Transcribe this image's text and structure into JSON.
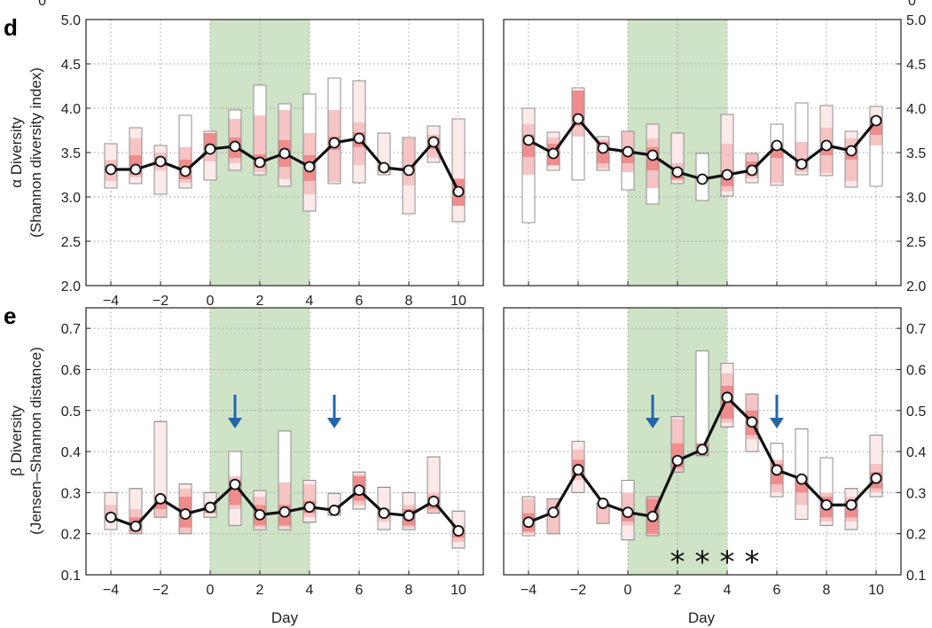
{
  "figure": {
    "panel_d": "d",
    "panel_e": "e",
    "alpha_ylabel_top": "α Diversity",
    "alpha_ylabel_bottom": "(Shannon diversity index)",
    "beta_ylabel_top": "β Diversity",
    "beta_ylabel_bottom": "(Jensen–Shannon distance)",
    "xlabel": "Day",
    "top_cut_tick": "0"
  },
  "colors": {
    "shade": "#cfe3c6",
    "box_inner": "#f08c8c",
    "box_mid": "#f6c4c4",
    "box_outer": "#fceaea",
    "box_white": "#ffffff",
    "box_edge": "#8f8f8f",
    "line": "#111111",
    "arrow": "#2166ac",
    "grid": "#9a9a9a"
  },
  "chart_data": [
    {
      "id": "d-left",
      "type": "line",
      "x": [
        -4,
        -3,
        -2,
        -1,
        0,
        1,
        2,
        3,
        4,
        5,
        6,
        7,
        8,
        9,
        10
      ],
      "median": [
        3.31,
        3.31,
        3.4,
        3.29,
        3.54,
        3.57,
        3.39,
        3.49,
        3.34,
        3.61,
        3.66,
        3.33,
        3.3,
        3.62,
        3.06
      ],
      "box_outer": [
        [
          3.1,
          3.6
        ],
        [
          3.15,
          3.78
        ],
        [
          3.03,
          3.58
        ],
        [
          3.1,
          3.92
        ],
        [
          3.19,
          3.74
        ],
        [
          3.3,
          3.98
        ],
        [
          3.25,
          4.26
        ],
        [
          3.12,
          4.05
        ],
        [
          2.84,
          4.16
        ],
        [
          3.15,
          4.34
        ],
        [
          3.16,
          4.31
        ],
        [
          3.25,
          3.72
        ],
        [
          2.81,
          3.67
        ],
        [
          3.39,
          3.8
        ],
        [
          2.72,
          3.88
        ]
      ],
      "box_mid": [
        [
          3.18,
          3.42
        ],
        [
          3.22,
          3.66
        ],
        [
          3.3,
          3.5
        ],
        [
          3.16,
          3.56
        ],
        [
          3.4,
          3.72
        ],
        [
          3.38,
          3.88
        ],
        [
          3.28,
          3.92
        ],
        [
          3.2,
          3.98
        ],
        [
          3.03,
          3.72
        ],
        [
          3.17,
          3.98
        ],
        [
          3.36,
          3.84
        ],
        [
          3.27,
          3.36
        ],
        [
          3.13,
          3.66
        ],
        [
          3.44,
          3.7
        ],
        [
          2.9,
          3.21
        ]
      ],
      "box_inner": [
        [
          3.28,
          3.36
        ],
        [
          3.25,
          3.47
        ],
        [
          3.35,
          3.45
        ],
        [
          3.2,
          3.42
        ],
        [
          3.52,
          3.72
        ],
        [
          3.44,
          3.67
        ],
        [
          3.33,
          3.48
        ],
        [
          3.34,
          3.64
        ],
        [
          3.18,
          3.47
        ],
        [
          3.53,
          3.68
        ],
        [
          3.56,
          3.73
        ],
        [
          3.3,
          3.35
        ],
        [
          3.28,
          3.35
        ],
        [
          3.54,
          3.67
        ],
        [
          2.9,
          3.2
        ]
      ],
      "box_white": [
        null,
        null,
        null,
        [
          3.56,
          3.92
        ],
        null,
        [
          3.86,
          3.98
        ],
        [
          3.92,
          4.26
        ],
        [
          3.98,
          4.05
        ],
        [
          3.72,
          4.16
        ],
        [
          3.98,
          4.34
        ],
        null,
        null,
        null,
        null,
        null
      ],
      "ylim": [
        2.0,
        5.0
      ],
      "yticks": [
        "2.0",
        "2.5",
        "3.0",
        "3.5",
        "4.0",
        "4.5",
        "5.0"
      ],
      "xticks": [
        "−4",
        "−2",
        "0",
        "2",
        "4",
        "6",
        "8",
        "10"
      ],
      "shaded": [
        0,
        4
      ],
      "grid": true
    },
    {
      "id": "d-right",
      "type": "line",
      "x": [
        -4,
        -3,
        -2,
        -1,
        0,
        1,
        2,
        3,
        4,
        5,
        6,
        7,
        8,
        9,
        10
      ],
      "median": [
        3.64,
        3.49,
        3.88,
        3.55,
        3.51,
        3.47,
        3.28,
        3.2,
        3.25,
        3.3,
        3.58,
        3.37,
        3.58,
        3.52,
        3.86
      ],
      "box_outer": [
        [
          2.71,
          4.0
        ],
        [
          3.3,
          3.73
        ],
        [
          3.19,
          4.23
        ],
        [
          3.3,
          3.68
        ],
        [
          3.08,
          3.74
        ],
        [
          2.92,
          3.82
        ],
        [
          3.15,
          3.72
        ],
        [
          2.96,
          3.49
        ],
        [
          3.01,
          3.93
        ],
        [
          3.16,
          3.49
        ],
        [
          3.13,
          3.82
        ],
        [
          3.25,
          4.06
        ],
        [
          3.24,
          4.03
        ],
        [
          3.11,
          3.74
        ],
        [
          3.12,
          4.02
        ]
      ],
      "box_mid": [
        [
          3.25,
          3.82
        ],
        [
          3.35,
          3.67
        ],
        [
          3.68,
          4.18
        ],
        [
          3.32,
          3.65
        ],
        [
          3.28,
          3.74
        ],
        [
          3.1,
          3.66
        ],
        [
          3.18,
          3.38
        ],
        [
          null,
          null
        ],
        [
          3.06,
          3.6
        ],
        [
          3.21,
          3.49
        ],
        [
          3.16,
          3.58
        ],
        [
          3.28,
          3.62
        ],
        [
          3.27,
          3.78
        ],
        [
          3.18,
          3.66
        ],
        [
          3.58,
          3.91
        ]
      ],
      "box_inner": [
        [
          3.45,
          3.7
        ],
        [
          3.36,
          3.6
        ],
        [
          3.8,
          4.2
        ],
        [
          3.38,
          3.62
        ],
        [
          3.38,
          3.55
        ],
        [
          3.3,
          3.56
        ],
        [
          3.2,
          3.32
        ],
        [
          null,
          null
        ],
        [
          3.12,
          3.3
        ],
        [
          3.24,
          3.4
        ],
        [
          3.44,
          3.58
        ],
        [
          3.32,
          3.4
        ],
        [
          3.47,
          3.6
        ],
        [
          3.42,
          3.57
        ],
        [
          3.7,
          3.9
        ]
      ],
      "box_white": [
        [
          2.71,
          3.25
        ],
        null,
        [
          3.19,
          3.68
        ],
        null,
        [
          3.08,
          3.28
        ],
        [
          2.92,
          3.1
        ],
        null,
        [
          2.96,
          3.49
        ],
        null,
        null,
        [
          3.58,
          3.82
        ],
        [
          3.62,
          4.06
        ],
        null,
        null,
        [
          3.12,
          3.58
        ]
      ],
      "ylim": [
        2.0,
        5.0
      ],
      "yticks": [
        "2.0",
        "2.5",
        "3.0",
        "3.5",
        "4.0",
        "4.5",
        "5.0"
      ],
      "xticks": [],
      "shaded": [
        0,
        4
      ],
      "grid": true
    },
    {
      "id": "e-left",
      "type": "line",
      "x": [
        -4,
        -3,
        -2,
        -1,
        0,
        1,
        2,
        3,
        4,
        5,
        6,
        7,
        8,
        9,
        10
      ],
      "median": [
        0.24,
        0.218,
        0.285,
        0.248,
        0.264,
        0.32,
        0.246,
        0.253,
        0.265,
        0.257,
        0.306,
        0.25,
        0.244,
        0.279,
        0.207
      ],
      "box_outer": [
        [
          0.21,
          0.3
        ],
        [
          0.2,
          0.31
        ],
        [
          0.24,
          0.473
        ],
        [
          0.2,
          0.321
        ],
        [
          0.24,
          0.3
        ],
        [
          0.22,
          0.4
        ],
        [
          0.21,
          0.305
        ],
        [
          0.21,
          0.45
        ],
        [
          0.228,
          0.33
        ],
        [
          0.245,
          0.298
        ],
        [
          0.26,
          0.35
        ],
        [
          0.21,
          0.313
        ],
        [
          0.21,
          0.3
        ],
        [
          0.25,
          0.387
        ],
        [
          0.165,
          0.255
        ]
      ],
      "box_mid": [
        [
          0.23,
          0.27
        ],
        [
          0.2,
          0.26
        ],
        [
          0.24,
          0.29
        ],
        [
          0.2,
          0.31
        ],
        [
          0.25,
          0.27
        ],
        [
          0.26,
          0.34
        ],
        [
          0.215,
          0.29
        ],
        [
          0.215,
          0.325
        ],
        [
          0.24,
          0.32
        ],
        [
          0.25,
          0.265
        ],
        [
          0.27,
          0.345
        ],
        [
          0.23,
          0.26
        ],
        [
          0.215,
          0.27
        ],
        [
          0.25,
          0.3
        ],
        [
          0.18,
          0.22
        ]
      ],
      "box_inner": [
        [
          0.235,
          0.25
        ],
        [
          0.205,
          0.24
        ],
        [
          0.26,
          0.29
        ],
        [
          0.215,
          0.29
        ],
        [
          0.25,
          0.27
        ],
        [
          0.27,
          0.33
        ],
        [
          0.22,
          0.27
        ],
        [
          0.22,
          0.27
        ],
        [
          0.25,
          0.28
        ],
        [
          0.25,
          0.265
        ],
        [
          0.28,
          0.34
        ],
        [
          0.24,
          0.26
        ],
        [
          0.22,
          0.26
        ],
        [
          0.26,
          0.29
        ],
        [
          0.19,
          0.21
        ]
      ],
      "box_white": [
        null,
        null,
        null,
        null,
        null,
        [
          0.34,
          0.4
        ],
        null,
        [
          0.325,
          0.45
        ],
        null,
        null,
        null,
        null,
        null,
        null,
        null
      ],
      "ylim": [
        0.1,
        0.75
      ],
      "yticks": [
        "0.1",
        "0.2",
        "0.3",
        "0.4",
        "0.5",
        "0.6",
        "0.7"
      ],
      "xticks": [
        "−4",
        "−2",
        "0",
        "2",
        "4",
        "6",
        "8",
        "10"
      ],
      "shaded": [
        0,
        4
      ],
      "arrows": [
        1,
        5
      ],
      "grid": true
    },
    {
      "id": "e-right",
      "type": "line",
      "x": [
        -4,
        -3,
        -2,
        -1,
        0,
        1,
        2,
        3,
        4,
        5,
        6,
        7,
        8,
        9,
        10
      ],
      "median": [
        0.228,
        0.252,
        0.356,
        0.274,
        0.252,
        0.242,
        0.378,
        0.405,
        0.532,
        0.472,
        0.355,
        0.333,
        0.27,
        0.27,
        0.335
      ],
      "box_outer": [
        [
          0.195,
          0.29
        ],
        [
          0.2,
          0.285
        ],
        [
          0.3,
          0.425
        ],
        [
          0.225,
          0.275
        ],
        [
          0.185,
          0.33
        ],
        [
          0.195,
          0.29
        ],
        [
          0.35,
          0.485
        ],
        [
          0.39,
          0.645
        ],
        [
          0.46,
          0.615
        ],
        [
          0.4,
          0.54
        ],
        [
          0.29,
          0.42
        ],
        [
          0.235,
          0.455
        ],
        [
          0.22,
          0.385
        ],
        [
          0.21,
          0.31
        ],
        [
          0.29,
          0.44
        ]
      ],
      "box_mid": [
        [
          0.2,
          0.285
        ],
        [
          0.2,
          0.285
        ],
        [
          0.33,
          0.405
        ],
        [
          0.225,
          0.275
        ],
        [
          0.22,
          0.3
        ],
        [
          0.195,
          0.29
        ],
        [
          0.35,
          0.48
        ],
        [
          0.39,
          0.42
        ],
        [
          0.47,
          0.59
        ],
        [
          0.43,
          0.54
        ],
        [
          0.3,
          0.38
        ],
        [
          0.27,
          0.34
        ],
        [
          0.23,
          0.3
        ],
        [
          0.23,
          0.29
        ],
        [
          0.3,
          0.37
        ]
      ],
      "box_inner": [
        [
          0.205,
          0.25
        ],
        [
          null,
          null
        ],
        [
          0.34,
          0.38
        ],
        [
          null,
          null
        ],
        [
          0.23,
          0.26
        ],
        [
          0.2,
          0.285
        ],
        [
          0.36,
          0.42
        ],
        [
          0.39,
          0.42
        ],
        [
          0.48,
          0.56
        ],
        [
          0.44,
          0.5
        ],
        [
          0.32,
          0.37
        ],
        [
          0.3,
          0.34
        ],
        [
          0.24,
          0.29
        ],
        [
          0.24,
          0.28
        ],
        [
          0.31,
          0.35
        ]
      ],
      "box_white": [
        null,
        null,
        null,
        null,
        [
          0.26,
          0.33
        ],
        null,
        null,
        [
          0.42,
          0.645
        ],
        null,
        [
          0.5,
          0.54
        ],
        [
          0.38,
          0.42
        ],
        [
          0.34,
          0.455
        ],
        [
          0.3,
          0.385
        ],
        null,
        null
      ],
      "ylim": [
        0.1,
        0.75
      ],
      "yticks": [
        "0.1",
        "0.2",
        "0.3",
        "0.4",
        "0.5",
        "0.6",
        "0.7"
      ],
      "xticks": [
        "−4",
        "−2",
        "0",
        "2",
        "4",
        "6",
        "8",
        "10"
      ],
      "shaded": [
        0,
        4
      ],
      "arrows": [
        1,
        6
      ],
      "significance": [
        2,
        3,
        4,
        5
      ],
      "significance_mark": "*",
      "grid": true
    }
  ]
}
